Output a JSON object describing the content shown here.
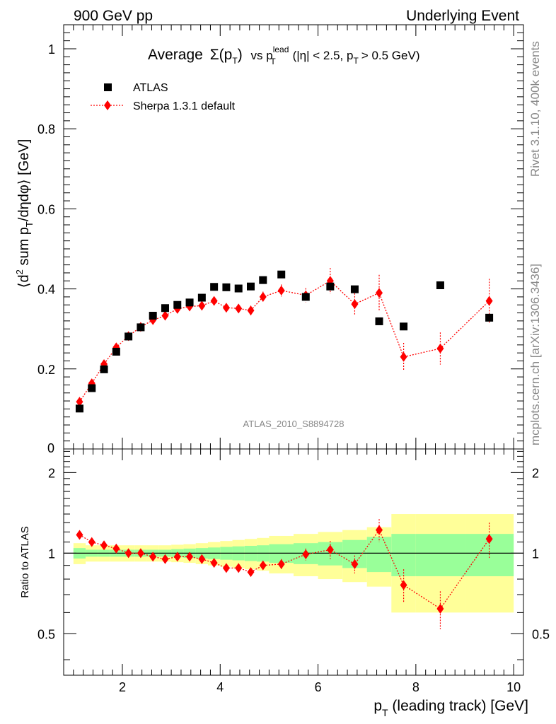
{
  "header": {
    "left": "900 GeV pp",
    "right": "Underlying Event"
  },
  "side": {
    "rivet": "Rivet 3.1.10,  400k events",
    "mcplots": "mcplots.cern.ch [arXiv:1306.3436]"
  },
  "title": {
    "main": "Average",
    "sigma": "Σ(p",
    "sub_t": "T",
    "close": ")",
    "vs": "vs p",
    "sup_lead": "lead",
    "sub_t2": "T",
    "cuts_a": "(|η| < 2.5, p",
    "sub_t3": "T",
    "cuts_b": "> 0.5 GeV)"
  },
  "analysis_id": "ATLAS_2010_S8894728",
  "axes": {
    "ylabel_main": "⟨d² sum p_T/dηdφ⟩ [GeV]",
    "ylabel_ratio": "Ratio to ATLAS",
    "xlabel": "p_T (leading track) [GeV]"
  },
  "colors": {
    "data": "#000000",
    "mc": "#ff0000",
    "band_inner": "#99ff99",
    "band_outer": "#ffff99"
  },
  "chart_data": [
    {
      "type": "scatter",
      "panel": "main",
      "xlim": [
        0.8,
        10.2
      ],
      "ylim": [
        0,
        1.06
      ],
      "yticks": [
        0.2,
        0.4,
        0.6,
        0.8,
        1
      ],
      "ytick_labels": [
        "0.2",
        "0.4",
        "0.6",
        "0.8",
        "1"
      ],
      "legend_position": "top-left",
      "series": [
        {
          "name": "ATLAS",
          "marker": "square",
          "x": [
            1.125,
            1.375,
            1.625,
            1.875,
            2.125,
            2.375,
            2.625,
            2.875,
            3.125,
            3.375,
            3.625,
            3.875,
            4.125,
            4.375,
            4.625,
            4.875,
            5.25,
            5.75,
            6.25,
            6.75,
            7.25,
            7.75,
            8.5,
            9.5
          ],
          "y": [
            0.101,
            0.152,
            0.199,
            0.243,
            0.281,
            0.304,
            0.333,
            0.352,
            0.36,
            0.366,
            0.378,
            0.405,
            0.404,
            0.401,
            0.406,
            0.422,
            0.436,
            0.38,
            0.406,
            0.399,
            0.319,
            0.306,
            0.409,
            0.328
          ]
        },
        {
          "name": "Sherpa 1.3.1 default",
          "marker": "diamond",
          "x": [
            1.125,
            1.375,
            1.625,
            1.875,
            2.125,
            2.375,
            2.625,
            2.875,
            3.125,
            3.375,
            3.625,
            3.875,
            4.125,
            4.375,
            4.625,
            4.875,
            5.25,
            5.75,
            6.25,
            6.75,
            7.25,
            7.75,
            8.5,
            9.5
          ],
          "y": [
            0.118,
            0.164,
            0.212,
            0.254,
            0.282,
            0.305,
            0.322,
            0.333,
            0.35,
            0.356,
            0.358,
            0.37,
            0.353,
            0.351,
            0.346,
            0.38,
            0.396,
            0.384,
            0.42,
            0.362,
            0.39,
            0.23,
            0.251,
            0.37
          ],
          "yerr": [
            0.004,
            0.004,
            0.004,
            0.004,
            0.005,
            0.005,
            0.005,
            0.006,
            0.007,
            0.007,
            0.008,
            0.009,
            0.01,
            0.011,
            0.012,
            0.013,
            0.015,
            0.018,
            0.032,
            0.027,
            0.045,
            0.035,
            0.04,
            0.055
          ]
        }
      ]
    },
    {
      "type": "scatter",
      "panel": "ratio",
      "xlim": [
        0.8,
        10.2
      ],
      "ylim": [
        0.35,
        2.45
      ],
      "log_y": true,
      "yticks": [
        0.5,
        1,
        2
      ],
      "ytick_labels": [
        "0.5",
        "1",
        "2"
      ],
      "xticks": [
        2,
        4,
        6,
        8,
        10
      ],
      "xtick_labels": [
        "2",
        "4",
        "6",
        "8",
        "10"
      ],
      "bands": {
        "edges": [
          1,
          1.25,
          1.5,
          1.75,
          2,
          2.25,
          2.5,
          2.75,
          3,
          3.25,
          3.5,
          3.75,
          4,
          4.25,
          4.5,
          4.75,
          5,
          5.5,
          6,
          6.5,
          7,
          7.5,
          8,
          9,
          10
        ],
        "inner": [
          0.045,
          0.03,
          0.03,
          0.03,
          0.03,
          0.03,
          0.03,
          0.03,
          0.035,
          0.04,
          0.045,
          0.05,
          0.055,
          0.06,
          0.065,
          0.07,
          0.08,
          0.09,
          0.1,
          0.12,
          0.15,
          0.18,
          0.18,
          0.18
        ],
        "outer": [
          0.09,
          0.07,
          0.07,
          0.07,
          0.07,
          0.07,
          0.07,
          0.07,
          0.075,
          0.08,
          0.09,
          0.1,
          0.11,
          0.12,
          0.13,
          0.14,
          0.16,
          0.18,
          0.2,
          0.22,
          0.25,
          0.4,
          0.4,
          0.4
        ]
      },
      "series": [
        {
          "name": "Sherpa 1.3.1 default",
          "x": [
            1.125,
            1.375,
            1.625,
            1.875,
            2.125,
            2.375,
            2.625,
            2.875,
            3.125,
            3.375,
            3.625,
            3.875,
            4.125,
            4.375,
            4.625,
            4.875,
            5.25,
            5.75,
            6.25,
            6.75,
            7.25,
            7.75,
            8.5,
            9.5
          ],
          "y": [
            1.17,
            1.1,
            1.07,
            1.04,
            1.0,
            1.0,
            0.97,
            0.95,
            0.97,
            0.97,
            0.95,
            0.92,
            0.88,
            0.88,
            0.85,
            0.9,
            0.91,
            0.99,
            1.03,
            0.91,
            1.22,
            0.76,
            0.62,
            1.13
          ],
          "yerr": [
            0.02,
            0.02,
            0.02,
            0.02,
            0.02,
            0.02,
            0.02,
            0.02,
            0.02,
            0.02,
            0.02,
            0.02,
            0.03,
            0.03,
            0.03,
            0.03,
            0.04,
            0.05,
            0.08,
            0.07,
            0.12,
            0.11,
            0.1,
            0.17
          ]
        }
      ]
    }
  ]
}
